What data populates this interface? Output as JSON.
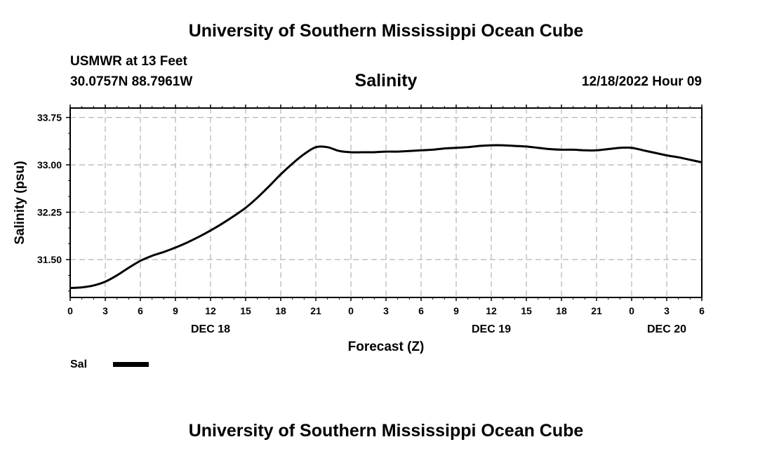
{
  "header": {
    "title": "University of Southern Mississippi Ocean Cube",
    "station": "USMWR at 13 Feet",
    "coords": "30.0757N  88.7961W",
    "chart_title": "Salinity",
    "timestamp": "12/18/2022 Hour 09"
  },
  "footer": {
    "title": "University of Southern Mississippi Ocean Cube"
  },
  "legend": {
    "label": "Sal",
    "color": "#000000"
  },
  "chart_data": {
    "type": "line",
    "title": "Salinity",
    "xlabel": "Forecast (Z)",
    "ylabel": "Salinity (psu)",
    "xlim": [
      0,
      54
    ],
    "ylim": [
      30.9,
      33.9
    ],
    "yticks": [
      31.5,
      32.25,
      33.0,
      33.75
    ],
    "ytick_labels": [
      "31.50",
      "32.25",
      "33.00",
      "33.75"
    ],
    "xticks": [
      0,
      3,
      6,
      9,
      12,
      15,
      18,
      21,
      24,
      27,
      30,
      33,
      36,
      39,
      42,
      45,
      48,
      51,
      54
    ],
    "xtick_labels": [
      "0",
      "3",
      "6",
      "9",
      "12",
      "15",
      "18",
      "21",
      "0",
      "3",
      "6",
      "9",
      "12",
      "15",
      "18",
      "21",
      "0",
      "3",
      "6"
    ],
    "date_labels": [
      {
        "text": "DEC 18",
        "x": 12
      },
      {
        "text": "DEC 19",
        "x": 36
      },
      {
        "text": "DEC 20",
        "x": 51
      }
    ],
    "grid": true,
    "series": [
      {
        "name": "Sal",
        "color": "#000000",
        "x": [
          0,
          1,
          2,
          3,
          4,
          5,
          6,
          7,
          8,
          9,
          10,
          11,
          12,
          13,
          14,
          15,
          16,
          17,
          18,
          19,
          20,
          21,
          22,
          23,
          24,
          25,
          26,
          27,
          28,
          29,
          30,
          31,
          32,
          33,
          34,
          35,
          36,
          37,
          38,
          39,
          40,
          41,
          42,
          43,
          44,
          45,
          46,
          47,
          48,
          49,
          50,
          51,
          52,
          53,
          54
        ],
        "values": [
          31.05,
          31.06,
          31.09,
          31.15,
          31.25,
          31.37,
          31.48,
          31.56,
          31.62,
          31.69,
          31.77,
          31.86,
          31.96,
          32.07,
          32.19,
          32.32,
          32.48,
          32.66,
          32.85,
          33.02,
          33.17,
          33.28,
          33.28,
          33.22,
          33.2,
          33.2,
          33.2,
          33.21,
          33.21,
          33.22,
          33.23,
          33.24,
          33.26,
          33.27,
          33.28,
          33.3,
          33.31,
          33.31,
          33.3,
          33.29,
          33.27,
          33.25,
          33.24,
          33.24,
          33.23,
          33.23,
          33.25,
          33.27,
          33.27,
          33.23,
          33.19,
          33.15,
          33.12,
          33.08,
          33.04
        ]
      }
    ]
  }
}
